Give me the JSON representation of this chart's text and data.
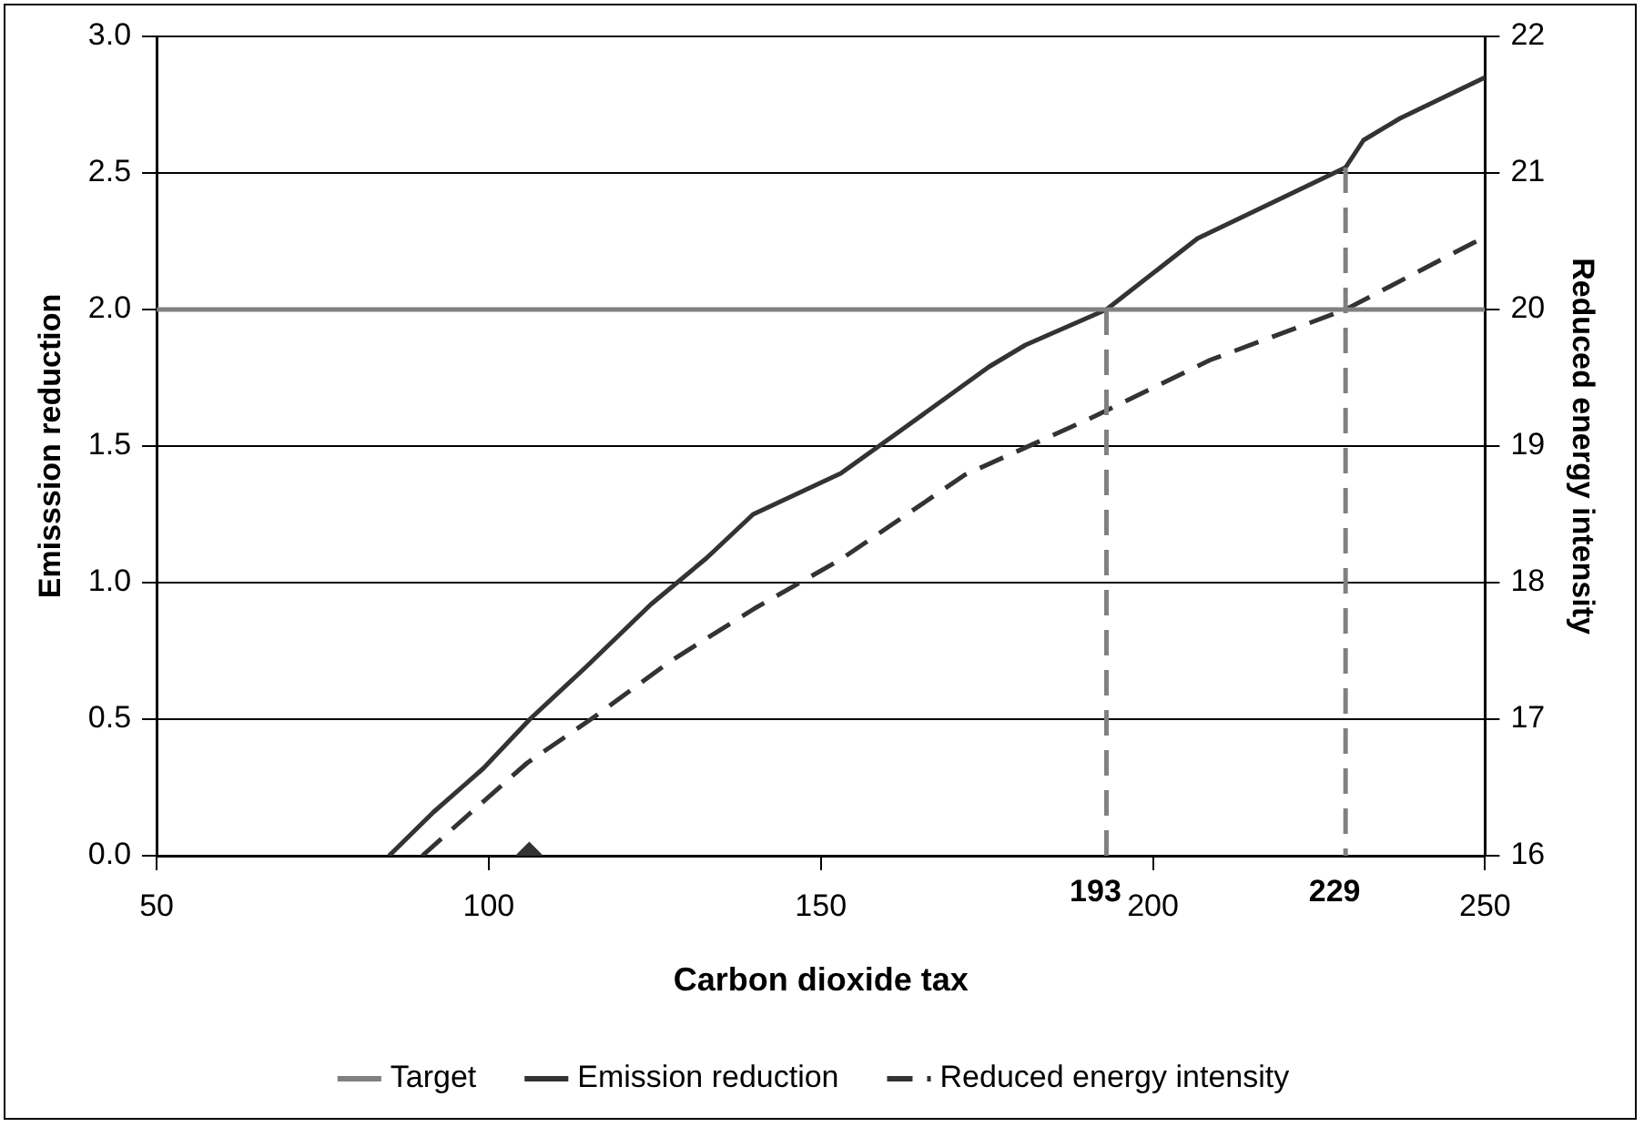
{
  "chart_data": {
    "type": "line",
    "xlabel": "Carbon dioxide tax",
    "ylabel": "Emisssion reduction",
    "y2label": "Reduced energy intensity",
    "xlim": [
      50,
      250
    ],
    "xticks": [
      50,
      100,
      150,
      200,
      250
    ],
    "ylim": [
      0,
      3
    ],
    "yticks": [
      {
        "value": 0,
        "label": "0.0"
      },
      {
        "value": 0.5,
        "label": "0.5"
      },
      {
        "value": 1,
        "label": "1.0"
      },
      {
        "value": 1.5,
        "label": "1.5"
      },
      {
        "value": 2,
        "label": "2.0"
      },
      {
        "value": 2.5,
        "label": "2.5"
      },
      {
        "value": 3,
        "label": "3.0"
      }
    ],
    "y2lim": [
      16,
      22
    ],
    "y2ticks": [
      16,
      17,
      18,
      19,
      20,
      21,
      22
    ],
    "grid": "y",
    "legend": "bottom",
    "marker": "none",
    "series": [
      {
        "name": "Target",
        "color": "#808080",
        "line_style": "solid",
        "x": [
          50,
          250
        ],
        "values": [
          2,
          2
        ]
      },
      {
        "name": "Emission reduction",
        "color": "#333333",
        "line_style": "solid",
        "x": [
          85,
          91.7,
          99.2,
          106.2,
          114.6,
          124.4,
          132.8,
          139.8,
          153,
          162.2,
          175.3,
          180.8,
          193,
          206.7,
          229,
          231.7,
          237.2,
          250
        ],
        "values": [
          0,
          0.16,
          0.32,
          0.5,
          0.69,
          0.92,
          1.09,
          1.25,
          1.4,
          1.56,
          1.79,
          1.87,
          2.0,
          2.26,
          2.52,
          2.62,
          2.7,
          2.85
        ]
      },
      {
        "name": "Reduced energy intensity",
        "color": "#333333",
        "line_style": "dashed",
        "axis": "y2",
        "x": [
          90,
          96.7,
          105.8,
          116,
          127.2,
          140,
          153,
          171.7,
          190,
          208.6,
          229,
          248.3,
          250
        ],
        "values": [
          16,
          16.29,
          16.68,
          17.02,
          17.42,
          17.81,
          18.17,
          18.79,
          19.19,
          19.63,
          20.0,
          20.49,
          20.52
        ]
      },
      {
        "type": "scatter",
        "marker": "diamond",
        "color": "#333333",
        "x": [
          106.1
        ],
        "values": [
          0
        ]
      }
    ],
    "ref_lines": [
      {
        "axis": "x",
        "value": 193,
        "label": "193",
        "color": "#808080",
        "line_style": "dashed"
      },
      {
        "axis": "x",
        "value": 229,
        "label": "229",
        "color": "#808080",
        "line_style": "dashed"
      }
    ]
  }
}
